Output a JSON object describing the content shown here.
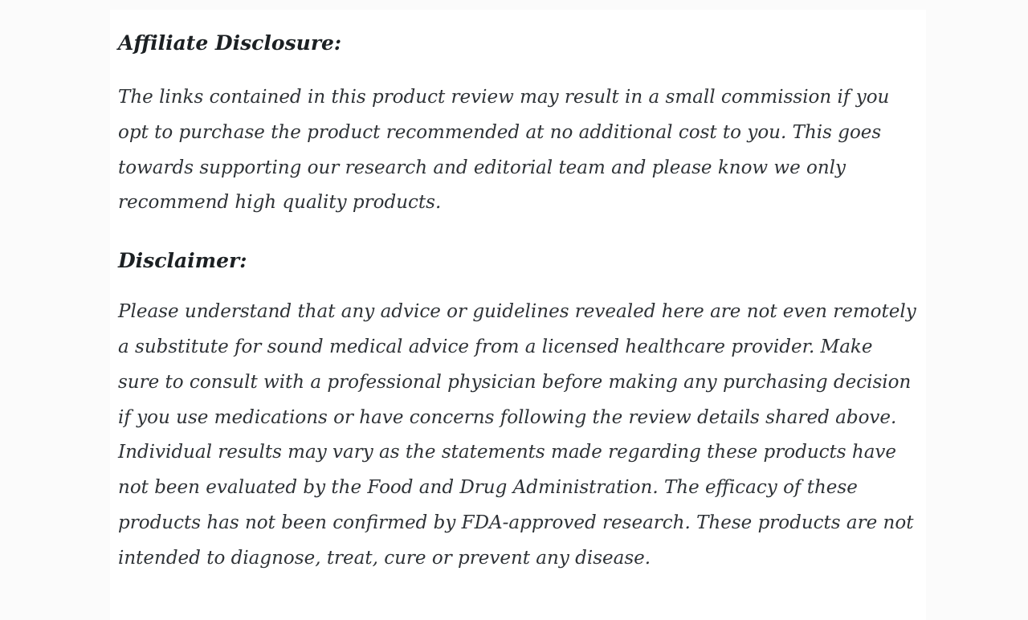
{
  "page": {
    "outer_background": "#fbfbfb",
    "card_background": "#ffffff",
    "heading_color": "#1c2023",
    "body_text_color": "#2e3236"
  },
  "document": {
    "sections": [
      {
        "heading": "Affiliate Disclosure:",
        "body": "The links contained in this product review may result in a small commission if you opt to purchase the product recommended at no additional cost to you. This goes towards supporting our research and editorial team and please know we only recommend high quality products."
      },
      {
        "heading": "Disclaimer:",
        "body": "Please understand that any advice or guidelines revealed here are not even remotely a substitute for sound medical advice from a licensed healthcare provider. Make sure to consult with a professional physician before making any purchasing decision if you use medications or have concerns following the review details shared above. Individual results may vary as the statements made regarding these products have not been evaluated by the Food and Drug Administration. The efficacy of these products has not been confirmed by FDA-approved research. These products are not intended to diagnose, treat, cure or prevent any disease."
      }
    ]
  }
}
